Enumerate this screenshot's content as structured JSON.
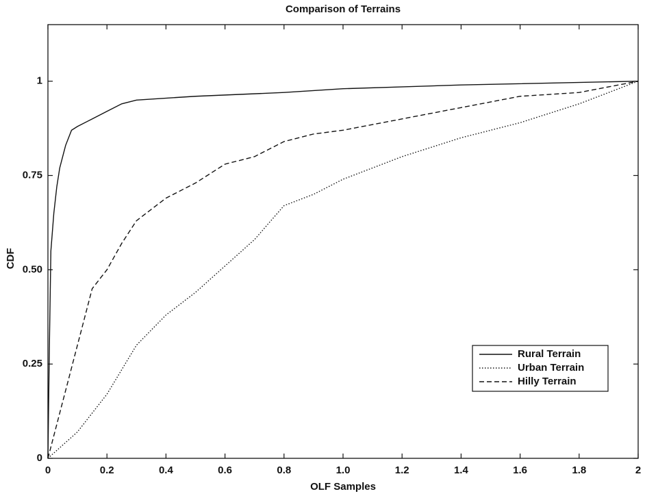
{
  "chart_data": {
    "type": "line",
    "title": "Comparison of Terrains",
    "x_label": "OLF Samples",
    "y_label": "CDF",
    "xlim": [
      0,
      2
    ],
    "ylim": [
      0,
      1.15
    ],
    "xticks": [
      0,
      0.2,
      0.4,
      0.6,
      0.8,
      {
        "value": 1,
        "label": "1.0"
      },
      1.2,
      1.4,
      1.6,
      1.8,
      2
    ],
    "yticks": [
      0,
      0.25,
      {
        "value": 0.5,
        "label": "0.50"
      },
      0.75,
      1
    ],
    "legend": "lower right",
    "grid": false,
    "series": [
      {
        "name": "Rural Terrain",
        "color": "#111111",
        "linestyle": "solid",
        "x": [
          0,
          0.005,
          0.01,
          0.02,
          0.03,
          0.04,
          0.05,
          0.06,
          0.08,
          0.1,
          0.15,
          0.2,
          0.25,
          0.3,
          0.5,
          0.8,
          1.0,
          1.4,
          2
        ],
        "values": [
          0,
          0.3,
          0.55,
          0.65,
          0.72,
          0.77,
          0.8,
          0.83,
          0.87,
          0.88,
          0.9,
          0.92,
          0.94,
          0.95,
          0.96,
          0.97,
          0.98,
          0.99,
          1
        ]
      },
      {
        "name": "Urban Terrain",
        "color": "#111111",
        "linestyle": "dotted",
        "x": [
          0,
          0.1,
          0.2,
          0.3,
          0.4,
          0.5,
          0.6,
          0.7,
          0.8,
          0.9,
          1.0,
          1.2,
          1.4,
          1.6,
          1.8,
          2
        ],
        "values": [
          0,
          0.07,
          0.17,
          0.3,
          0.38,
          0.44,
          0.51,
          0.58,
          0.67,
          0.7,
          0.74,
          0.8,
          0.85,
          0.89,
          0.94,
          1
        ]
      },
      {
        "name": "Hilly Terrain",
        "color": "#111111",
        "linestyle": "dashed",
        "x": [
          0,
          0.05,
          0.1,
          0.15,
          0.2,
          0.25,
          0.3,
          0.4,
          0.5,
          0.6,
          0.7,
          0.8,
          0.9,
          1.0,
          1.2,
          1.4,
          1.6,
          1.8,
          2
        ],
        "values": [
          0,
          0.15,
          0.3,
          0.45,
          0.5,
          0.57,
          0.63,
          0.69,
          0.73,
          0.78,
          0.8,
          0.84,
          0.86,
          0.87,
          0.9,
          0.93,
          0.96,
          0.97,
          1
        ]
      }
    ]
  }
}
